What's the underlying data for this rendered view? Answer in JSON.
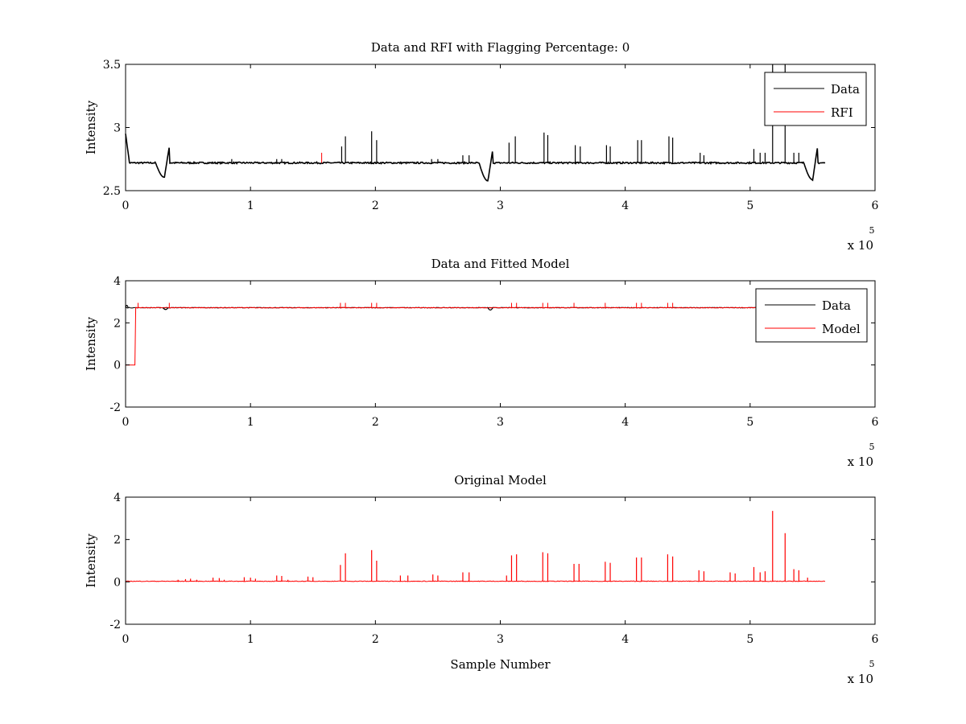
{
  "figure": {
    "background": "#ffffff"
  },
  "chart_data": [
    {
      "type": "line",
      "title": "Data and RFI with Flagging Percentage: 0",
      "xlabel": "",
      "ylabel": "Intensity",
      "xlim": [
        0,
        6
      ],
      "ylim": [
        2.5,
        3.5
      ],
      "xticks": [
        "0",
        "1",
        "2",
        "3",
        "4",
        "5",
        "6"
      ],
      "yticks": [
        "2.5",
        "3",
        "3.5"
      ],
      "x_multiplier": {
        "base": "x 10",
        "exponent": "5"
      },
      "grid": false,
      "legend": {
        "position": "top-right",
        "entries": [
          {
            "name": "Data",
            "color": "#000000"
          },
          {
            "name": "RFI",
            "color": "#ff0000"
          }
        ]
      },
      "series": [
        {
          "name": "Data",
          "color": "#000000",
          "x_range": [
            0,
            5.6
          ],
          "baseline": 2.72,
          "dips": [
            {
              "at": 0.0,
              "start": 2.73,
              "peak": 2.95,
              "end": 2.73
            },
            {
              "at": 0.31,
              "low": 2.6,
              "high": 2.85
            },
            {
              "at": 2.9,
              "low": 2.57,
              "high": 2.83
            },
            {
              "at": 5.5,
              "low": 2.58,
              "high": 2.85
            }
          ],
          "spikes": [
            [
              1.73,
              2.85
            ],
            [
              1.76,
              2.93
            ],
            [
              1.97,
              2.97
            ],
            [
              2.01,
              2.9
            ],
            [
              2.7,
              2.78
            ],
            [
              2.75,
              2.78
            ],
            [
              3.07,
              2.88
            ],
            [
              3.12,
              2.93
            ],
            [
              3.35,
              2.96
            ],
            [
              3.38,
              2.94
            ],
            [
              3.6,
              2.86
            ],
            [
              3.64,
              2.85
            ],
            [
              3.85,
              2.86
            ],
            [
              3.88,
              2.85
            ],
            [
              4.1,
              2.9
            ],
            [
              4.13,
              2.9
            ],
            [
              4.35,
              2.93
            ],
            [
              4.38,
              2.92
            ],
            [
              4.6,
              2.8
            ],
            [
              4.63,
              2.78
            ],
            [
              5.03,
              2.83
            ],
            [
              5.08,
              2.8
            ],
            [
              5.12,
              2.8
            ],
            [
              5.18,
              3.5
            ],
            [
              5.28,
              3.5
            ],
            [
              5.35,
              2.8
            ],
            [
              5.39,
              2.8
            ],
            [
              0.85,
              2.75
            ],
            [
              1.21,
              2.75
            ],
            [
              1.25,
              2.75
            ],
            [
              2.45,
              2.75
            ],
            [
              2.5,
              2.75
            ]
          ]
        },
        {
          "name": "RFI",
          "color": "#ff0000",
          "points": [
            [
              1.57,
              2.8
            ]
          ]
        }
      ]
    },
    {
      "type": "line",
      "title": "Data and Fitted Model",
      "xlabel": "",
      "ylabel": "Intensity",
      "xlim": [
        0,
        6
      ],
      "ylim": [
        -2,
        4
      ],
      "xticks": [
        "0",
        "1",
        "2",
        "3",
        "4",
        "5",
        "6"
      ],
      "yticks": [
        "-2",
        "0",
        "2",
        "4"
      ],
      "x_multiplier": {
        "base": "x 10",
        "exponent": "5"
      },
      "grid": false,
      "legend": {
        "position": "top-right",
        "entries": [
          {
            "name": "Data",
            "color": "#000000"
          },
          {
            "name": "Model",
            "color": "#ff0000"
          }
        ]
      },
      "series": [
        {
          "name": "Data",
          "color": "#000000",
          "x_range": [
            0,
            5.6
          ],
          "baseline": 2.72
        },
        {
          "name": "Model",
          "color": "#ff0000",
          "x_range": [
            0,
            5.6
          ],
          "baseline": 2.72,
          "step": {
            "x_from": 0,
            "x_to": 0.08,
            "value": 0
          }
        }
      ]
    },
    {
      "type": "line",
      "title": "Original Model",
      "xlabel": "Sample Number",
      "ylabel": "Intensity",
      "xlim": [
        0,
        6
      ],
      "ylim": [
        -2,
        4
      ],
      "xticks": [
        "0",
        "1",
        "2",
        "3",
        "4",
        "5",
        "6"
      ],
      "yticks": [
        "-2",
        "0",
        "2",
        "4"
      ],
      "x_multiplier": {
        "base": "x 10",
        "exponent": "5"
      },
      "grid": false,
      "series": [
        {
          "name": "Original Model",
          "color": "#ff0000",
          "x_range": [
            0,
            5.6
          ],
          "baseline": 0.03,
          "spikes": [
            [
              0.42,
              0.1
            ],
            [
              0.48,
              0.13
            ],
            [
              0.52,
              0.15
            ],
            [
              0.57,
              0.1
            ],
            [
              0.7,
              0.2
            ],
            [
              0.75,
              0.18
            ],
            [
              0.79,
              0.1
            ],
            [
              0.95,
              0.22
            ],
            [
              1.0,
              0.2
            ],
            [
              1.04,
              0.15
            ],
            [
              1.21,
              0.3
            ],
            [
              1.25,
              0.28
            ],
            [
              1.3,
              0.1
            ],
            [
              1.46,
              0.25
            ],
            [
              1.5,
              0.22
            ],
            [
              1.72,
              0.8
            ],
            [
              1.76,
              1.35
            ],
            [
              1.97,
              1.5
            ],
            [
              2.01,
              1.0
            ],
            [
              2.2,
              0.3
            ],
            [
              2.26,
              0.3
            ],
            [
              2.46,
              0.35
            ],
            [
              2.5,
              0.3
            ],
            [
              2.7,
              0.45
            ],
            [
              2.75,
              0.45
            ],
            [
              3.05,
              0.3
            ],
            [
              3.09,
              1.25
            ],
            [
              3.13,
              1.3
            ],
            [
              3.34,
              1.4
            ],
            [
              3.38,
              1.35
            ],
            [
              3.59,
              0.85
            ],
            [
              3.63,
              0.85
            ],
            [
              3.84,
              0.95
            ],
            [
              3.88,
              0.9
            ],
            [
              4.09,
              1.15
            ],
            [
              4.13,
              1.15
            ],
            [
              4.34,
              1.3
            ],
            [
              4.38,
              1.2
            ],
            [
              4.59,
              0.55
            ],
            [
              4.63,
              0.5
            ],
            [
              4.84,
              0.45
            ],
            [
              4.88,
              0.4
            ],
            [
              5.03,
              0.7
            ],
            [
              5.08,
              0.45
            ],
            [
              5.12,
              0.5
            ],
            [
              5.18,
              3.35
            ],
            [
              5.28,
              2.3
            ],
            [
              5.35,
              0.6
            ],
            [
              5.39,
              0.55
            ],
            [
              5.46,
              0.2
            ]
          ]
        }
      ]
    }
  ]
}
